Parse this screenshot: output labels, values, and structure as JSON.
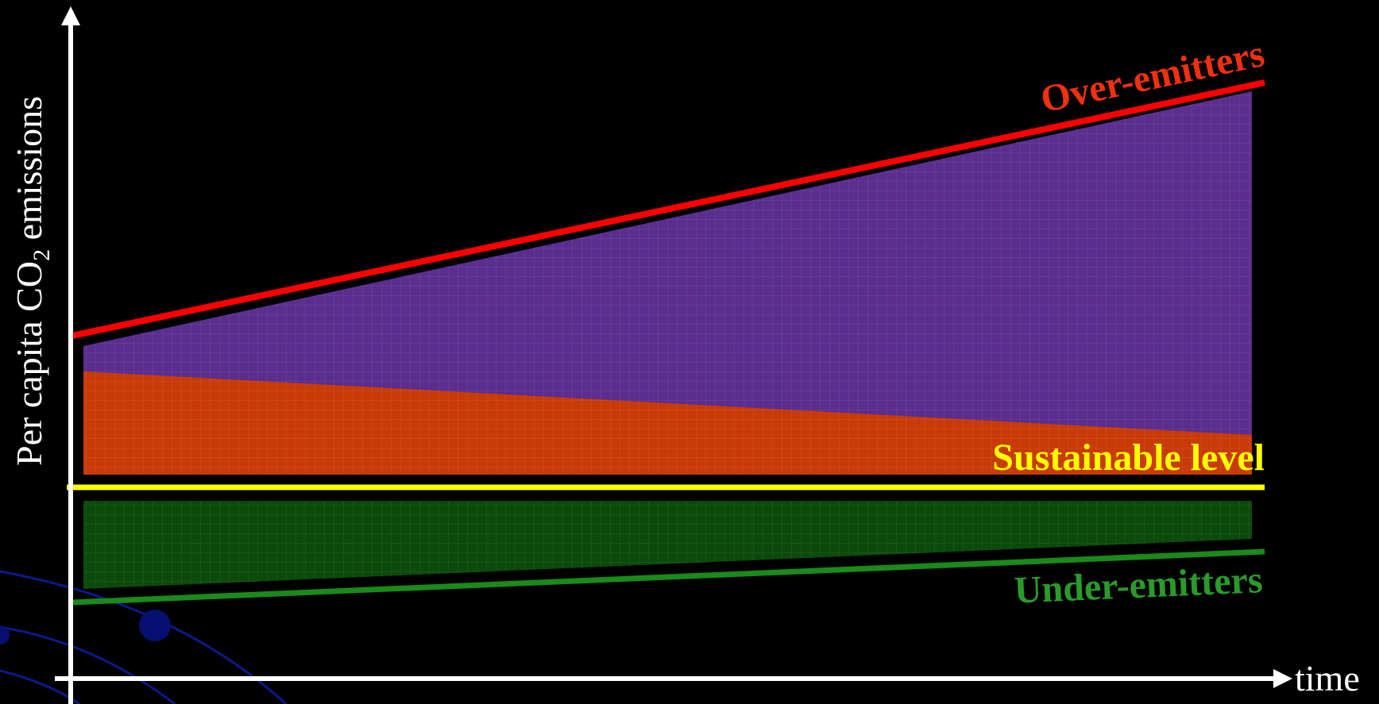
{
  "y_axis": {
    "label": "Per capita CO",
    "subscript": "2",
    "label_end": " emissions"
  },
  "x_axis": {
    "label": "time"
  },
  "annotations": {
    "over": "Over-emitters",
    "sustainable": "Sustainable level",
    "under": "Under-emitters"
  }
}
